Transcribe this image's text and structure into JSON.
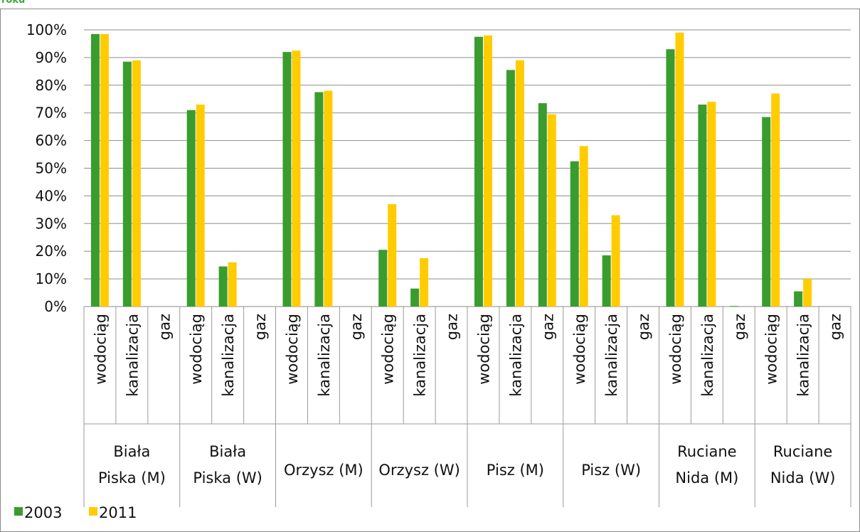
{
  "header": {
    "title_fragment": "roku"
  },
  "chart_data": {
    "type": "bar",
    "y_tick_labels": [
      "0%",
      "10%",
      "20%",
      "30%",
      "40%",
      "50%",
      "60%",
      "70%",
      "80%",
      "90%",
      "100%"
    ],
    "ylim": [
      0,
      100
    ],
    "y_unit": "%",
    "grid": true,
    "legend_position": "bottom-left",
    "groups": [
      {
        "label": "Biała Piska (M)",
        "lines": [
          "Biała",
          "Piska (M)"
        ]
      },
      {
        "label": "Biała Piska (W)",
        "lines": [
          "Biała",
          "Piska (W)"
        ]
      },
      {
        "label": "Orzysz (M)",
        "lines": [
          "Orzysz (M)"
        ]
      },
      {
        "label": "Orzysz (W)",
        "lines": [
          "Orzysz (W)"
        ]
      },
      {
        "label": "Pisz (M)",
        "lines": [
          "Pisz (M)"
        ]
      },
      {
        "label": "Pisz (W)",
        "lines": [
          "Pisz (W)"
        ]
      },
      {
        "label": "Ruciane Nida (M)",
        "lines": [
          "Ruciane",
          "Nida (M)"
        ]
      },
      {
        "label": "Ruciane Nida (W)",
        "lines": [
          "Ruciane",
          "Nida (W)"
        ]
      }
    ],
    "subcategories": [
      "wodociąg",
      "kanalizacja",
      "gaz"
    ],
    "series": [
      {
        "name": "2003",
        "color": "#3a9c2f",
        "values": [
          98.5,
          88.5,
          0,
          71,
          14.5,
          0,
          92,
          77.5,
          0,
          20.5,
          6.5,
          0,
          97.5,
          85.5,
          73.5,
          52.5,
          18.5,
          0,
          93,
          73,
          0.2,
          68.5,
          5.5,
          0
        ]
      },
      {
        "name": "2011",
        "color": "#ffcc00",
        "values": [
          98.5,
          89,
          0,
          73,
          16,
          0,
          92.5,
          78,
          0,
          37,
          17.5,
          0,
          98,
          89,
          69.5,
          58,
          33,
          0,
          99,
          74,
          0,
          77,
          10,
          0
        ]
      }
    ]
  }
}
